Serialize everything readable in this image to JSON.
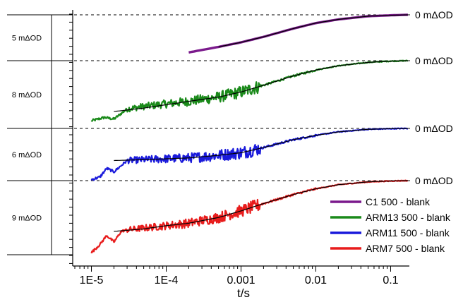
{
  "chart_data": {
    "type": "line",
    "title": "",
    "xlabel": "t/s",
    "ylabel": "",
    "xscale": "log",
    "xlim": [
      5.62e-06,
      0.178
    ],
    "grid": false,
    "legend_position": "bottom-right",
    "x_ticks": [
      {
        "value": 1e-05,
        "label": "1E-5"
      },
      {
        "value": 0.0001,
        "label": "1E-4"
      },
      {
        "value": 0.001,
        "label": "0.001"
      },
      {
        "value": 0.01,
        "label": "0.01"
      },
      {
        "value": 0.1,
        "label": "0.1"
      }
    ],
    "scale_bars": [
      {
        "label": "5 mΔOD"
      },
      {
        "label": "8 mΔOD"
      },
      {
        "label": "6 mΔOD"
      },
      {
        "label": "9 mΔOD"
      }
    ],
    "zero_labels": [
      "0 mΔOD",
      "0 mΔOD",
      "0 mΔOD",
      "0 mΔOD"
    ],
    "series": [
      {
        "name": "C1 500 - blank",
        "color": "#7B1A8C",
        "panel": 0,
        "noisy": false,
        "x": [
          0.0002,
          0.0005,
          0.001,
          0.002,
          0.005,
          0.01,
          0.02,
          0.05,
          0.1,
          0.17
        ],
        "y": [
          -4.1,
          -3.5,
          -3.0,
          -2.4,
          -1.5,
          -0.9,
          -0.5,
          -0.15,
          -0.05,
          0
        ]
      },
      {
        "name": "ARM13 500 - blank",
        "color": "#1A8A1A",
        "panel": 1,
        "noisy": true,
        "x": [
          1e-05,
          1.5e-05,
          2e-05,
          3e-05,
          5e-05,
          0.0001,
          0.0002,
          0.0005,
          0.001,
          0.002,
          0.005,
          0.01,
          0.02,
          0.05,
          0.1,
          0.17
        ],
        "y": [
          -7.1,
          -6.7,
          -6.9,
          -5.7,
          -5.4,
          -5.1,
          -4.8,
          -4.3,
          -3.7,
          -2.9,
          -1.8,
          -1.1,
          -0.6,
          -0.2,
          -0.05,
          0
        ]
      },
      {
        "name": "ARM11 500 - blank",
        "color": "#1A1ADB",
        "panel": 2,
        "noisy": true,
        "x": [
          1e-05,
          1.3e-05,
          1.6e-05,
          2e-05,
          3e-05,
          5e-05,
          0.0001,
          0.0002,
          0.0005,
          0.001,
          0.002,
          0.005,
          0.01,
          0.02,
          0.05,
          0.1,
          0.17
        ],
        "y": [
          -5.9,
          -5.6,
          -4.6,
          -5.0,
          -3.7,
          -3.6,
          -3.5,
          -3.4,
          -3.1,
          -2.8,
          -2.2,
          -1.3,
          -0.8,
          -0.4,
          -0.1,
          -0.03,
          0
        ]
      },
      {
        "name": "ARM7 500 - blank",
        "color": "#E81C1C",
        "panel": 3,
        "noisy": true,
        "x": [
          1e-05,
          1.3e-05,
          1.6e-05,
          2e-05,
          2.5e-05,
          3e-05,
          5e-05,
          0.0001,
          0.0002,
          0.0005,
          0.001,
          0.002,
          0.005,
          0.01,
          0.02,
          0.05,
          0.1,
          0.17
        ],
        "y": [
          -8.8,
          -7.8,
          -6.7,
          -7.5,
          -6.2,
          -6.0,
          -5.8,
          -5.5,
          -5.2,
          -4.5,
          -3.7,
          -2.8,
          -1.7,
          -1.0,
          -0.5,
          -0.15,
          -0.04,
          0
        ]
      }
    ],
    "fits": [
      {
        "panel": 0,
        "x": [
          0.0005,
          0.001,
          0.002,
          0.005,
          0.01,
          0.02,
          0.05,
          0.1,
          0.17
        ],
        "y": [
          -3.5,
          -3.0,
          -2.4,
          -1.5,
          -0.9,
          -0.5,
          -0.15,
          -0.05,
          0
        ]
      },
      {
        "panel": 1,
        "x": [
          2e-05,
          5e-05,
          0.0001,
          0.0002,
          0.0005,
          0.001,
          0.002,
          0.005,
          0.01,
          0.02,
          0.05,
          0.1,
          0.17
        ],
        "y": [
          -6.0,
          -5.6,
          -5.2,
          -4.8,
          -4.3,
          -3.7,
          -2.9,
          -1.8,
          -1.1,
          -0.6,
          -0.2,
          -0.05,
          0
        ]
      },
      {
        "panel": 2,
        "x": [
          2e-05,
          5e-05,
          0.0001,
          0.0002,
          0.0005,
          0.001,
          0.002,
          0.005,
          0.01,
          0.02,
          0.05,
          0.1,
          0.17
        ],
        "y": [
          -3.7,
          -3.6,
          -3.5,
          -3.4,
          -3.1,
          -2.8,
          -2.2,
          -1.3,
          -0.8,
          -0.4,
          -0.1,
          -0.03,
          0
        ]
      },
      {
        "panel": 3,
        "x": [
          2e-05,
          5e-05,
          0.0001,
          0.0002,
          0.0005,
          0.001,
          0.002,
          0.005,
          0.01,
          0.02,
          0.05,
          0.1,
          0.17
        ],
        "y": [
          -6.2,
          -5.9,
          -5.5,
          -5.2,
          -4.5,
          -3.7,
          -2.8,
          -1.7,
          -1.0,
          -0.5,
          -0.15,
          -0.04,
          0
        ]
      }
    ]
  }
}
